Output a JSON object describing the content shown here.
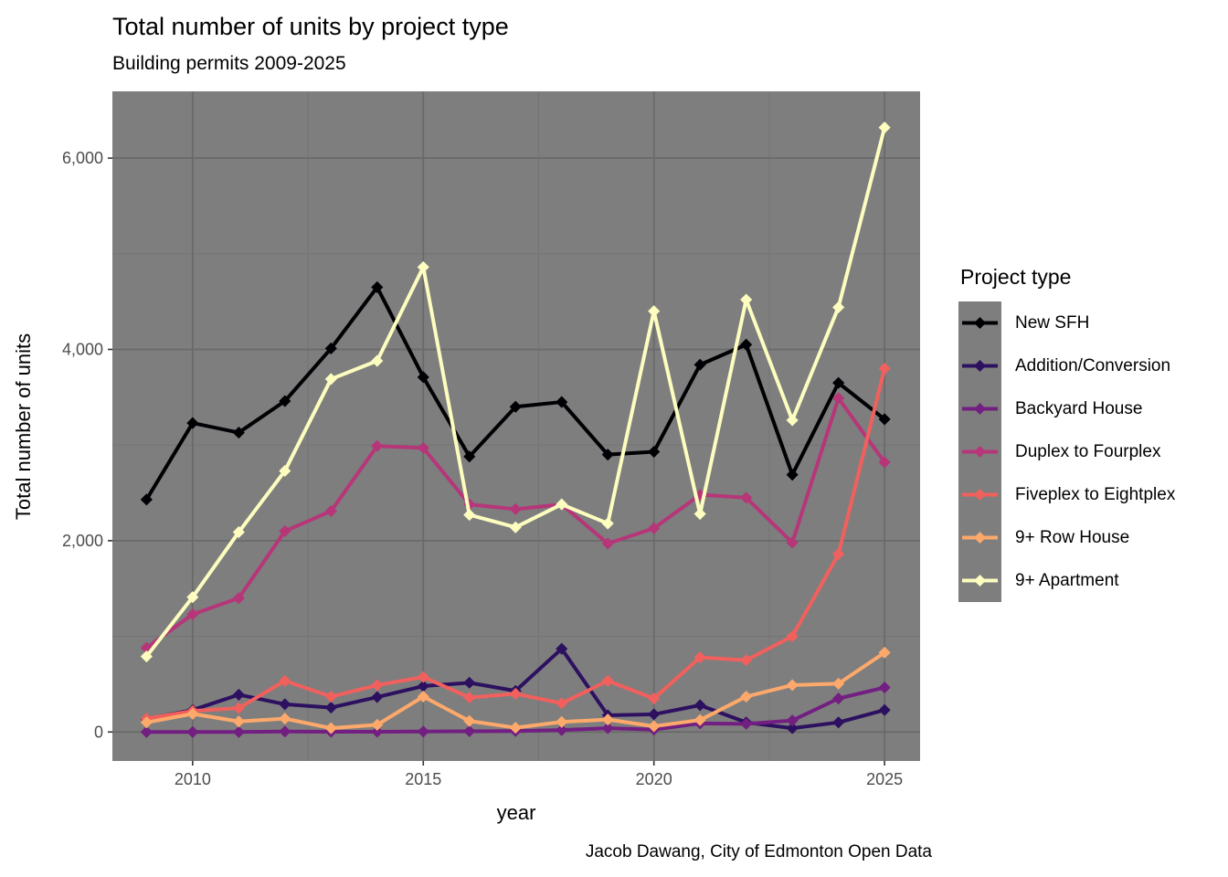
{
  "header": {
    "title": "Total number of units by project type",
    "subtitle": "Building permits 2009-2025"
  },
  "caption": "Jacob Dawang, City of Edmonton Open Data",
  "legend": {
    "title": "Project type"
  },
  "axes": {
    "x": {
      "label": "year",
      "ticks": [
        2010,
        2015,
        2020,
        2025
      ],
      "tick_labels": [
        "2010",
        "2015",
        "2020",
        "2025"
      ],
      "minor_ticks": [
        2012.5,
        2017.5,
        2022.5
      ],
      "range": [
        2008.26,
        2025.77
      ]
    },
    "y": {
      "label": "Total number of units",
      "ticks": [
        0,
        2000,
        4000,
        6000
      ],
      "tick_labels": [
        "0",
        "2,000",
        "4,000",
        "6,000"
      ],
      "minor_ticks": [
        1000,
        3000,
        5000
      ],
      "range": [
        -303,
        6698
      ]
    }
  },
  "colors": {
    "panel_background": "#7E7E7E",
    "grid_major": "#6A6A6A",
    "grid_minor": "#757575",
    "axis_text": "#4D4D4D",
    "tick_mark": "#333333"
  },
  "chart_data": {
    "type": "line",
    "title": "Total number of units by project type",
    "subtitle": "Building permits 2009-2025",
    "xlabel": "year",
    "ylabel": "Total number of units",
    "xlim": [
      2009,
      2025
    ],
    "ylim": [
      0,
      6400
    ],
    "grid": "on",
    "legend_position": "right",
    "legend_title": "Project type",
    "marker": "diamond",
    "x": [
      2009,
      2010,
      2011,
      2012,
      2013,
      2014,
      2015,
      2016,
      2017,
      2018,
      2019,
      2020,
      2021,
      2022,
      2023,
      2024,
      2025
    ],
    "series": [
      {
        "name": "New SFH",
        "color": "#000004",
        "values": [
          2430,
          3230,
          3130,
          3460,
          4010,
          4650,
          3710,
          2880,
          3400,
          3450,
          2900,
          2930,
          3840,
          4050,
          2690,
          3650,
          3270
        ]
      },
      {
        "name": "Addition/Conversion",
        "color": "#2D1160",
        "values": [
          135,
          230,
          390,
          290,
          255,
          365,
          480,
          515,
          430,
          870,
          175,
          185,
          280,
          100,
          40,
          100,
          230
        ]
      },
      {
        "name": "Backyard House",
        "color": "#721F81",
        "values": [
          0,
          0,
          0,
          5,
          3,
          3,
          5,
          8,
          10,
          20,
          40,
          25,
          90,
          85,
          120,
          350,
          465
        ]
      },
      {
        "name": "Duplex to Fourplex",
        "color": "#B63679",
        "values": [
          880,
          1230,
          1400,
          2100,
          2310,
          2990,
          2970,
          2380,
          2330,
          2380,
          1970,
          2130,
          2480,
          2450,
          1980,
          3490,
          2820
        ]
      },
      {
        "name": "Fiveplex to Eightplex",
        "color": "#F1605D",
        "values": [
          140,
          220,
          250,
          535,
          370,
          490,
          575,
          360,
          400,
          300,
          535,
          350,
          780,
          750,
          1000,
          1860,
          3800
        ]
      },
      {
        "name": "9+ Row House",
        "color": "#FDA96B",
        "values": [
          100,
          190,
          110,
          140,
          40,
          75,
          370,
          115,
          45,
          105,
          130,
          60,
          125,
          370,
          490,
          505,
          830
        ]
      },
      {
        "name": "9+ Apartment",
        "color": "#FCFDBF",
        "values": [
          790,
          1410,
          2090,
          2730,
          3690,
          3880,
          4860,
          2270,
          2140,
          2380,
          2180,
          4400,
          2280,
          4520,
          3260,
          4440,
          6320
        ]
      }
    ]
  }
}
